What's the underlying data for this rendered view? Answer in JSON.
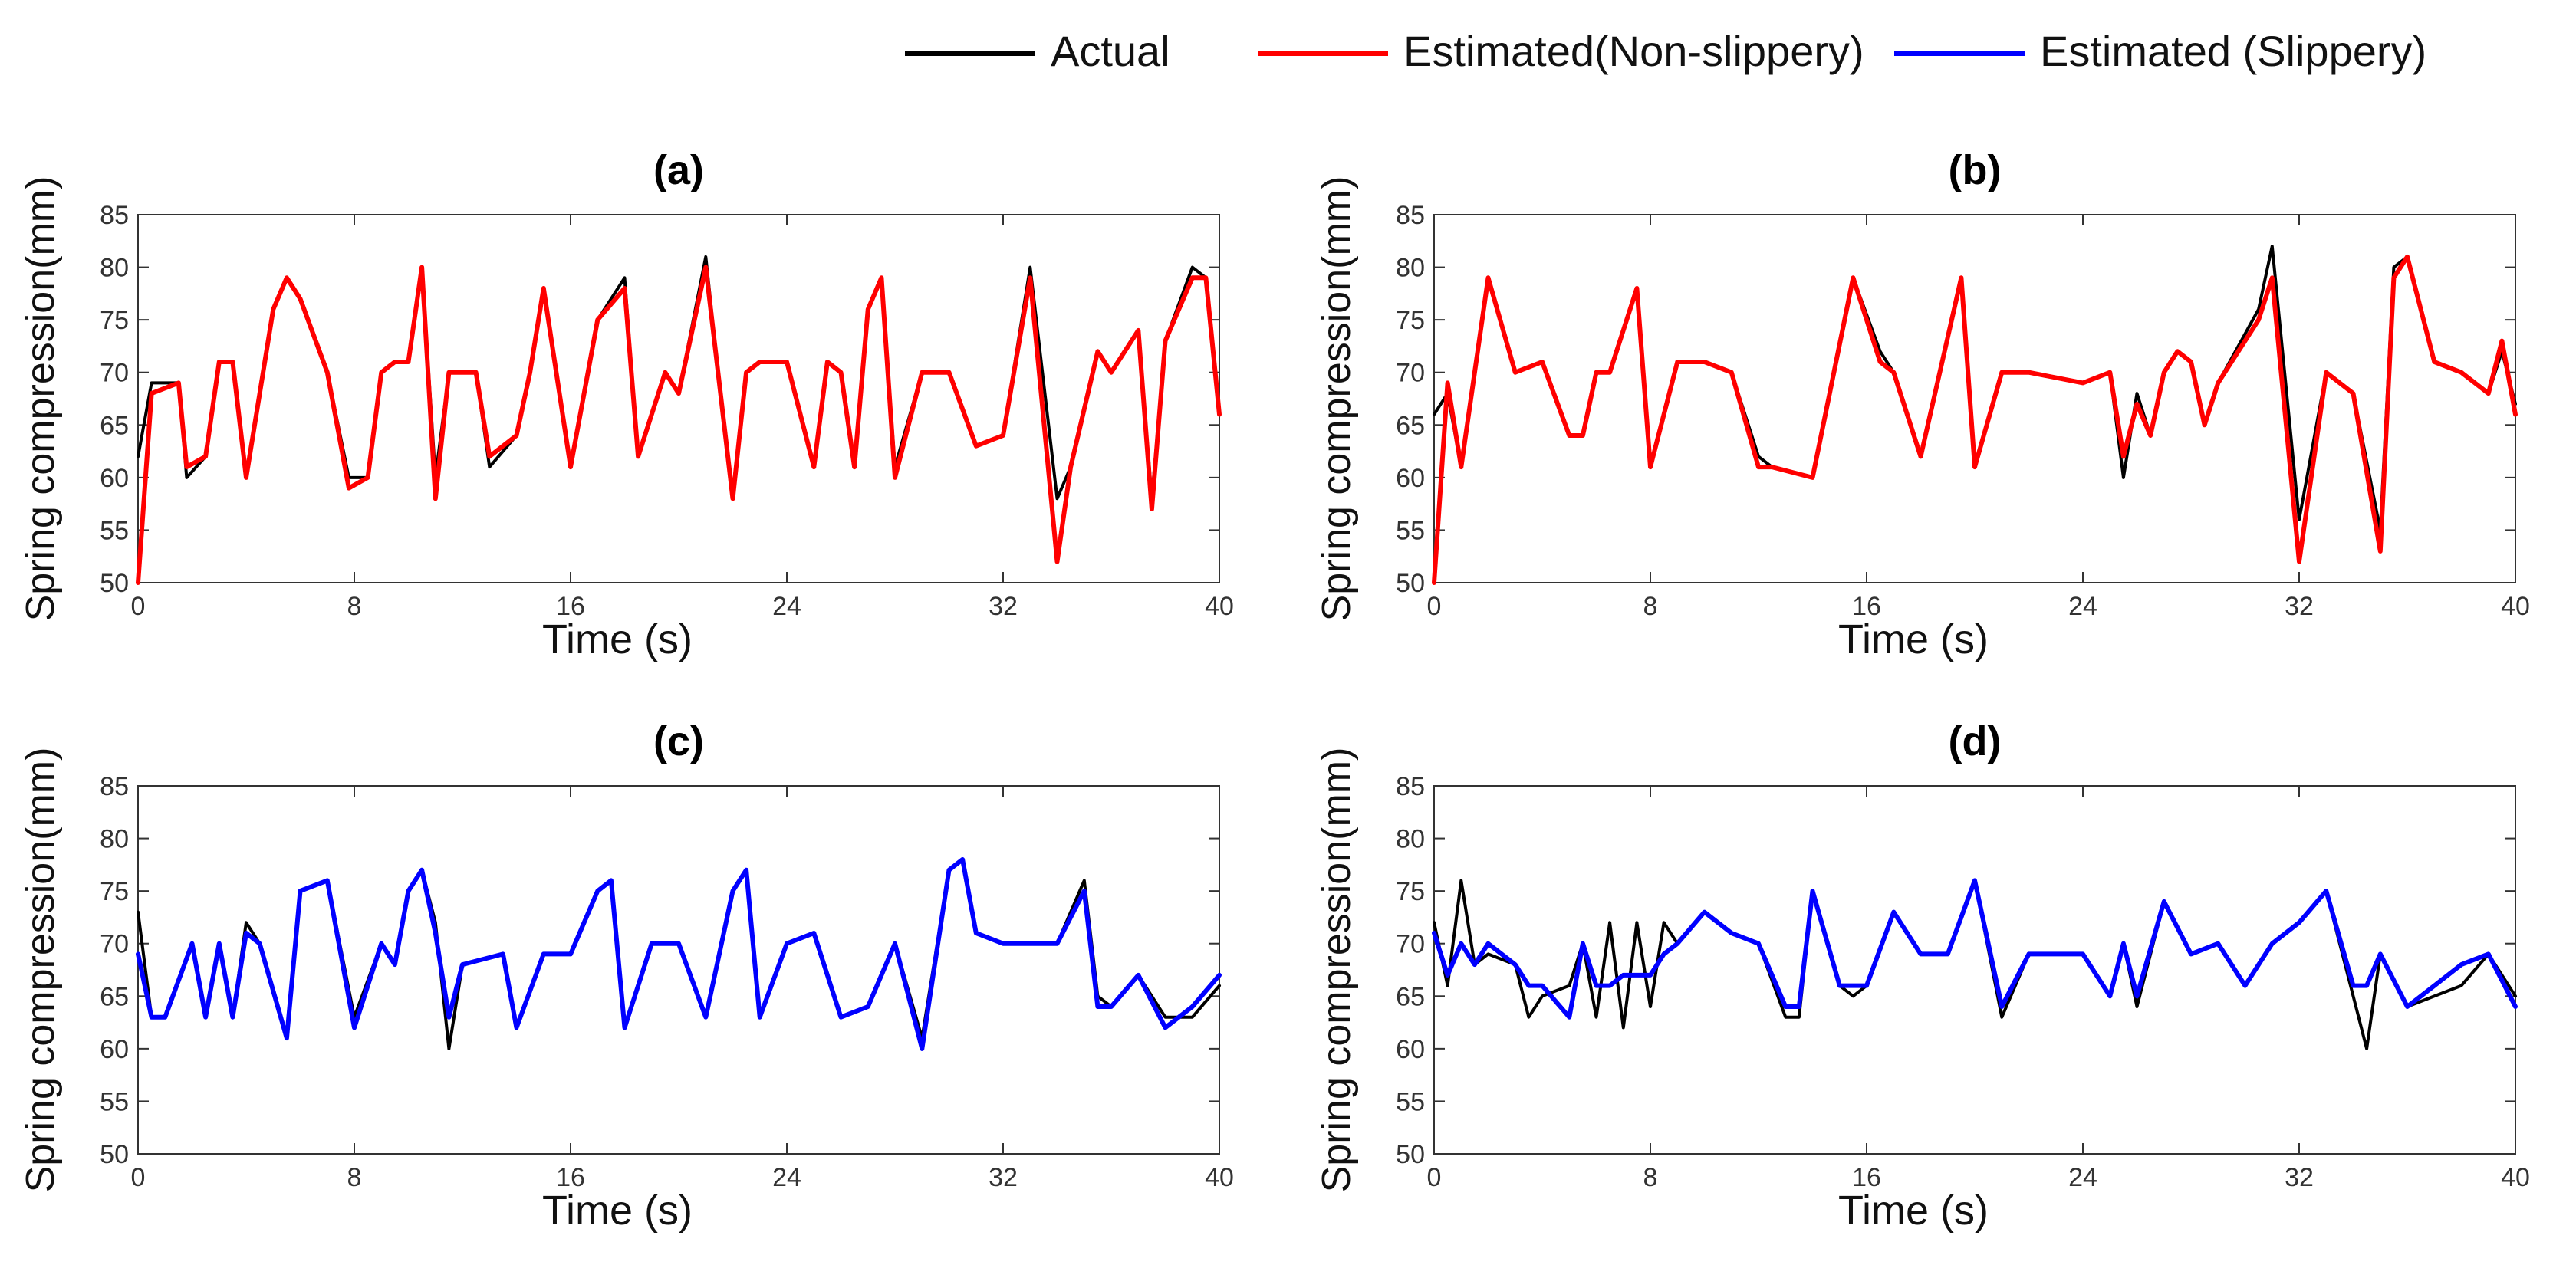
{
  "legend": [
    {
      "label": "Actual",
      "color": "#000000"
    },
    {
      "label": "Estimated(Non-slippery)",
      "color": "#ff0000"
    },
    {
      "label": "Estimated (Slippery)",
      "color": "#0000ff"
    }
  ],
  "chart_data": [
    {
      "type": "line",
      "title": "(a)",
      "xlabel": "Time (s)",
      "ylabel": "Spring compression(mm)",
      "xlim": [
        0,
        40
      ],
      "ylim": [
        50,
        85
      ],
      "xticks": [
        0,
        8,
        16,
        24,
        32,
        40
      ],
      "yticks": [
        50,
        55,
        60,
        65,
        70,
        75,
        80,
        85
      ],
      "series": [
        {
          "name": "Actual",
          "color": "#000000",
          "x": [
            0,
            0.5,
            1.5,
            1.8,
            2.5,
            3,
            3.5,
            4,
            5,
            5.5,
            6,
            7,
            7.8,
            8.5,
            9,
            9.5,
            10,
            10.5,
            11,
            11.5,
            12.5,
            13,
            14,
            14.5,
            15,
            16,
            17,
            18,
            18.5,
            19.5,
            20,
            21,
            21.5,
            22,
            22.5,
            23,
            24,
            25,
            25.5,
            26,
            26.5,
            27,
            27.5,
            28,
            29,
            30,
            31,
            32,
            33,
            34,
            34.5,
            35.5,
            36,
            37,
            37.5,
            38,
            39,
            39.5,
            40
          ],
          "y": [
            62,
            69,
            69,
            60,
            62,
            71,
            71,
            60,
            76,
            79,
            77,
            70,
            60,
            60,
            70,
            71,
            71,
            80,
            60,
            70,
            70,
            61,
            64,
            70,
            78,
            61,
            75,
            79,
            62,
            70,
            68,
            81,
            69,
            58,
            70,
            71,
            71,
            61,
            71,
            70,
            61,
            76,
            79,
            61,
            70,
            70,
            63,
            64,
            80,
            58,
            61,
            72,
            70,
            74,
            58,
            73,
            80,
            79,
            66
          ]
        },
        {
          "name": "Estimated(Non-slippery)",
          "color": "#ff0000",
          "x": [
            0,
            0.5,
            1.5,
            1.8,
            2.5,
            3,
            3.5,
            4,
            5,
            5.5,
            6,
            7,
            7.8,
            8.5,
            9,
            9.5,
            10,
            10.5,
            11,
            11.5,
            12.5,
            13,
            14,
            14.5,
            15,
            16,
            17,
            18,
            18.5,
            19.5,
            20,
            21,
            21.5,
            22,
            22.5,
            23,
            24,
            25,
            25.5,
            26,
            26.5,
            27,
            27.5,
            28,
            29,
            30,
            31,
            32,
            33,
            34,
            34.5,
            35.5,
            36,
            37,
            37.5,
            38,
            39,
            39.5,
            40
          ],
          "y": [
            50,
            68,
            69,
            61,
            62,
            71,
            71,
            60,
            76,
            79,
            77,
            70,
            59,
            60,
            70,
            71,
            71,
            80,
            58,
            70,
            70,
            62,
            64,
            70,
            78,
            61,
            75,
            78,
            62,
            70,
            68,
            80,
            69,
            58,
            70,
            71,
            71,
            61,
            71,
            70,
            61,
            76,
            79,
            60,
            70,
            70,
            63,
            64,
            79,
            52,
            61,
            72,
            70,
            74,
            57,
            73,
            79,
            79,
            66
          ]
        }
      ]
    },
    {
      "type": "line",
      "title": "(b)",
      "xlabel": "Time (s)",
      "ylabel": "Spring compression(mm)",
      "xlim": [
        0,
        40
      ],
      "ylim": [
        50,
        85
      ],
      "xticks": [
        0,
        8,
        16,
        24,
        32,
        40
      ],
      "yticks": [
        50,
        55,
        60,
        65,
        70,
        75,
        80,
        85
      ],
      "series": [
        {
          "name": "Actual",
          "color": "#000000",
          "x": [
            0,
            0.5,
            1,
            2,
            3,
            4,
            5,
            5.5,
            6,
            6.5,
            7.5,
            8,
            9,
            10,
            11,
            12,
            12.5,
            14,
            15.5,
            16.5,
            17,
            18,
            19.5,
            20,
            21,
            22,
            24,
            25,
            25.5,
            26,
            26.5,
            27,
            27.5,
            28,
            28.5,
            29,
            30.5,
            31,
            32,
            33,
            34,
            35,
            35.5,
            36,
            37,
            38,
            39,
            39.5,
            40
          ],
          "y": [
            66,
            68,
            61,
            79,
            70,
            71,
            64,
            64,
            70,
            70,
            78,
            61,
            71,
            71,
            70,
            62,
            61,
            60,
            79,
            72,
            70,
            62,
            79,
            61,
            70,
            70,
            69,
            70,
            60,
            68,
            64,
            70,
            72,
            71,
            65,
            69,
            76,
            82,
            56,
            70,
            68,
            55,
            80,
            81,
            71,
            70,
            68,
            72,
            67
          ]
        },
        {
          "name": "Estimated(Non-slippery)",
          "color": "#ff0000",
          "x": [
            0,
            0.5,
            1,
            2,
            3,
            4,
            5,
            5.5,
            6,
            6.5,
            7.5,
            8,
            9,
            10,
            11,
            12,
            12.5,
            14,
            15.5,
            16.5,
            17,
            18,
            19.5,
            20,
            21,
            22,
            24,
            25,
            25.5,
            26,
            26.5,
            27,
            27.5,
            28,
            28.5,
            29,
            30.5,
            31,
            32,
            33,
            34,
            35,
            35.5,
            36,
            37,
            38,
            39,
            39.5,
            40
          ],
          "y": [
            50,
            69,
            61,
            79,
            70,
            71,
            64,
            64,
            70,
            70,
            78,
            61,
            71,
            71,
            70,
            61,
            61,
            60,
            79,
            71,
            70,
            62,
            79,
            61,
            70,
            70,
            69,
            70,
            62,
            67,
            64,
            70,
            72,
            71,
            65,
            69,
            75,
            79,
            52,
            70,
            68,
            53,
            79,
            81,
            71,
            70,
            68,
            73,
            66
          ]
        }
      ]
    },
    {
      "type": "line",
      "title": "(c)",
      "xlabel": "Time (s)",
      "ylabel": "Spring compression(mm)",
      "xlim": [
        0,
        40
      ],
      "ylim": [
        50,
        85
      ],
      "xticks": [
        0,
        8,
        16,
        24,
        32,
        40
      ],
      "yticks": [
        50,
        55,
        60,
        65,
        70,
        75,
        80,
        85
      ],
      "series": [
        {
          "name": "Actual",
          "color": "#000000",
          "x": [
            0,
            0.5,
            1,
            2,
            2.5,
            3,
            3.5,
            4,
            4.5,
            5.5,
            6,
            7,
            8,
            9,
            9.5,
            10,
            10.5,
            11,
            11.5,
            12,
            13.5,
            14,
            15,
            16,
            17,
            17.5,
            18,
            19,
            20,
            21,
            22,
            22.5,
            23,
            24,
            25,
            26,
            27,
            28,
            29,
            30,
            30.5,
            31,
            32,
            33,
            34,
            35,
            35.5,
            36,
            37,
            38,
            39,
            40
          ],
          "y": [
            73,
            63,
            63,
            70,
            63,
            70,
            63,
            72,
            70,
            61,
            75,
            76,
            63,
            70,
            68,
            75,
            77,
            72,
            60,
            68,
            69,
            62,
            69,
            69,
            75,
            76,
            62,
            70,
            70,
            63,
            75,
            77,
            63,
            70,
            71,
            63,
            64,
            70,
            61,
            77,
            78,
            71,
            70,
            70,
            70,
            76,
            65,
            64,
            67,
            63,
            63,
            66
          ]
        },
        {
          "name": "Estimated (Slippery)",
          "color": "#0000ff",
          "x": [
            0,
            0.5,
            1,
            2,
            2.5,
            3,
            3.5,
            4,
            4.5,
            5.5,
            6,
            7,
            8,
            9,
            9.5,
            10,
            10.5,
            11,
            11.5,
            12,
            13.5,
            14,
            15,
            16,
            17,
            17.5,
            18,
            19,
            20,
            21,
            22,
            22.5,
            23,
            24,
            25,
            26,
            27,
            28,
            29,
            30,
            30.5,
            31,
            32,
            33,
            34,
            35,
            35.5,
            36,
            37,
            38,
            39,
            40
          ],
          "y": [
            69,
            63,
            63,
            70,
            63,
            70,
            63,
            71,
            70,
            61,
            75,
            76,
            62,
            70,
            68,
            75,
            77,
            71,
            63,
            68,
            69,
            62,
            69,
            69,
            75,
            76,
            62,
            70,
            70,
            63,
            75,
            77,
            63,
            70,
            71,
            63,
            64,
            70,
            60,
            77,
            78,
            71,
            70,
            70,
            70,
            75,
            64,
            64,
            67,
            62,
            64,
            67
          ]
        }
      ]
    },
    {
      "type": "line",
      "title": "(d)",
      "xlabel": "Time (s)",
      "ylabel": "Spring compression(mm)",
      "xlim": [
        0,
        40
      ],
      "ylim": [
        50,
        85
      ],
      "xticks": [
        0,
        8,
        16,
        24,
        32,
        40
      ],
      "yticks": [
        50,
        55,
        60,
        65,
        70,
        75,
        80,
        85
      ],
      "series": [
        {
          "name": "Actual",
          "color": "#000000",
          "x": [
            0,
            0.5,
            1,
            1.5,
            2,
            3,
            3.5,
            4,
            5,
            5.5,
            6,
            6.5,
            7,
            7.5,
            8,
            8.5,
            9,
            10,
            11,
            12,
            13,
            13.5,
            14,
            15,
            15.5,
            16,
            17,
            18,
            19,
            20,
            21,
            22,
            24,
            25,
            25.5,
            26,
            27,
            28,
            29,
            30,
            31,
            32,
            33,
            34,
            34.5,
            35,
            36,
            37,
            38,
            39,
            40
          ],
          "y": [
            72,
            66,
            76,
            68,
            69,
            68,
            63,
            65,
            66,
            70,
            63,
            72,
            62,
            72,
            64,
            72,
            70,
            73,
            71,
            70,
            63,
            63,
            75,
            66,
            65,
            66,
            73,
            69,
            69,
            76,
            63,
            69,
            69,
            65,
            70,
            64,
            74,
            69,
            70,
            66,
            70,
            72,
            75,
            65,
            60,
            69,
            64,
            65,
            66,
            69,
            65
          ]
        },
        {
          "name": "Estimated (Slippery)",
          "color": "#0000ff",
          "x": [
            0,
            0.5,
            1,
            1.5,
            2,
            3,
            3.5,
            4,
            5,
            5.5,
            6,
            6.5,
            7,
            7.5,
            8,
            8.5,
            9,
            10,
            11,
            12,
            13,
            13.5,
            14,
            15,
            15.5,
            16,
            17,
            18,
            19,
            20,
            21,
            22,
            24,
            25,
            25.5,
            26,
            27,
            28,
            29,
            30,
            31,
            32,
            33,
            34,
            34.5,
            35,
            36,
            37,
            38,
            39,
            40
          ],
          "y": [
            71,
            67,
            70,
            68,
            70,
            68,
            66,
            66,
            63,
            70,
            66,
            66,
            67,
            67,
            67,
            69,
            70,
            73,
            71,
            70,
            64,
            64,
            75,
            66,
            66,
            66,
            73,
            69,
            69,
            76,
            64,
            69,
            69,
            65,
            70,
            65,
            74,
            69,
            70,
            66,
            70,
            72,
            75,
            66,
            66,
            69,
            64,
            66,
            68,
            69,
            64
          ]
        }
      ]
    }
  ]
}
